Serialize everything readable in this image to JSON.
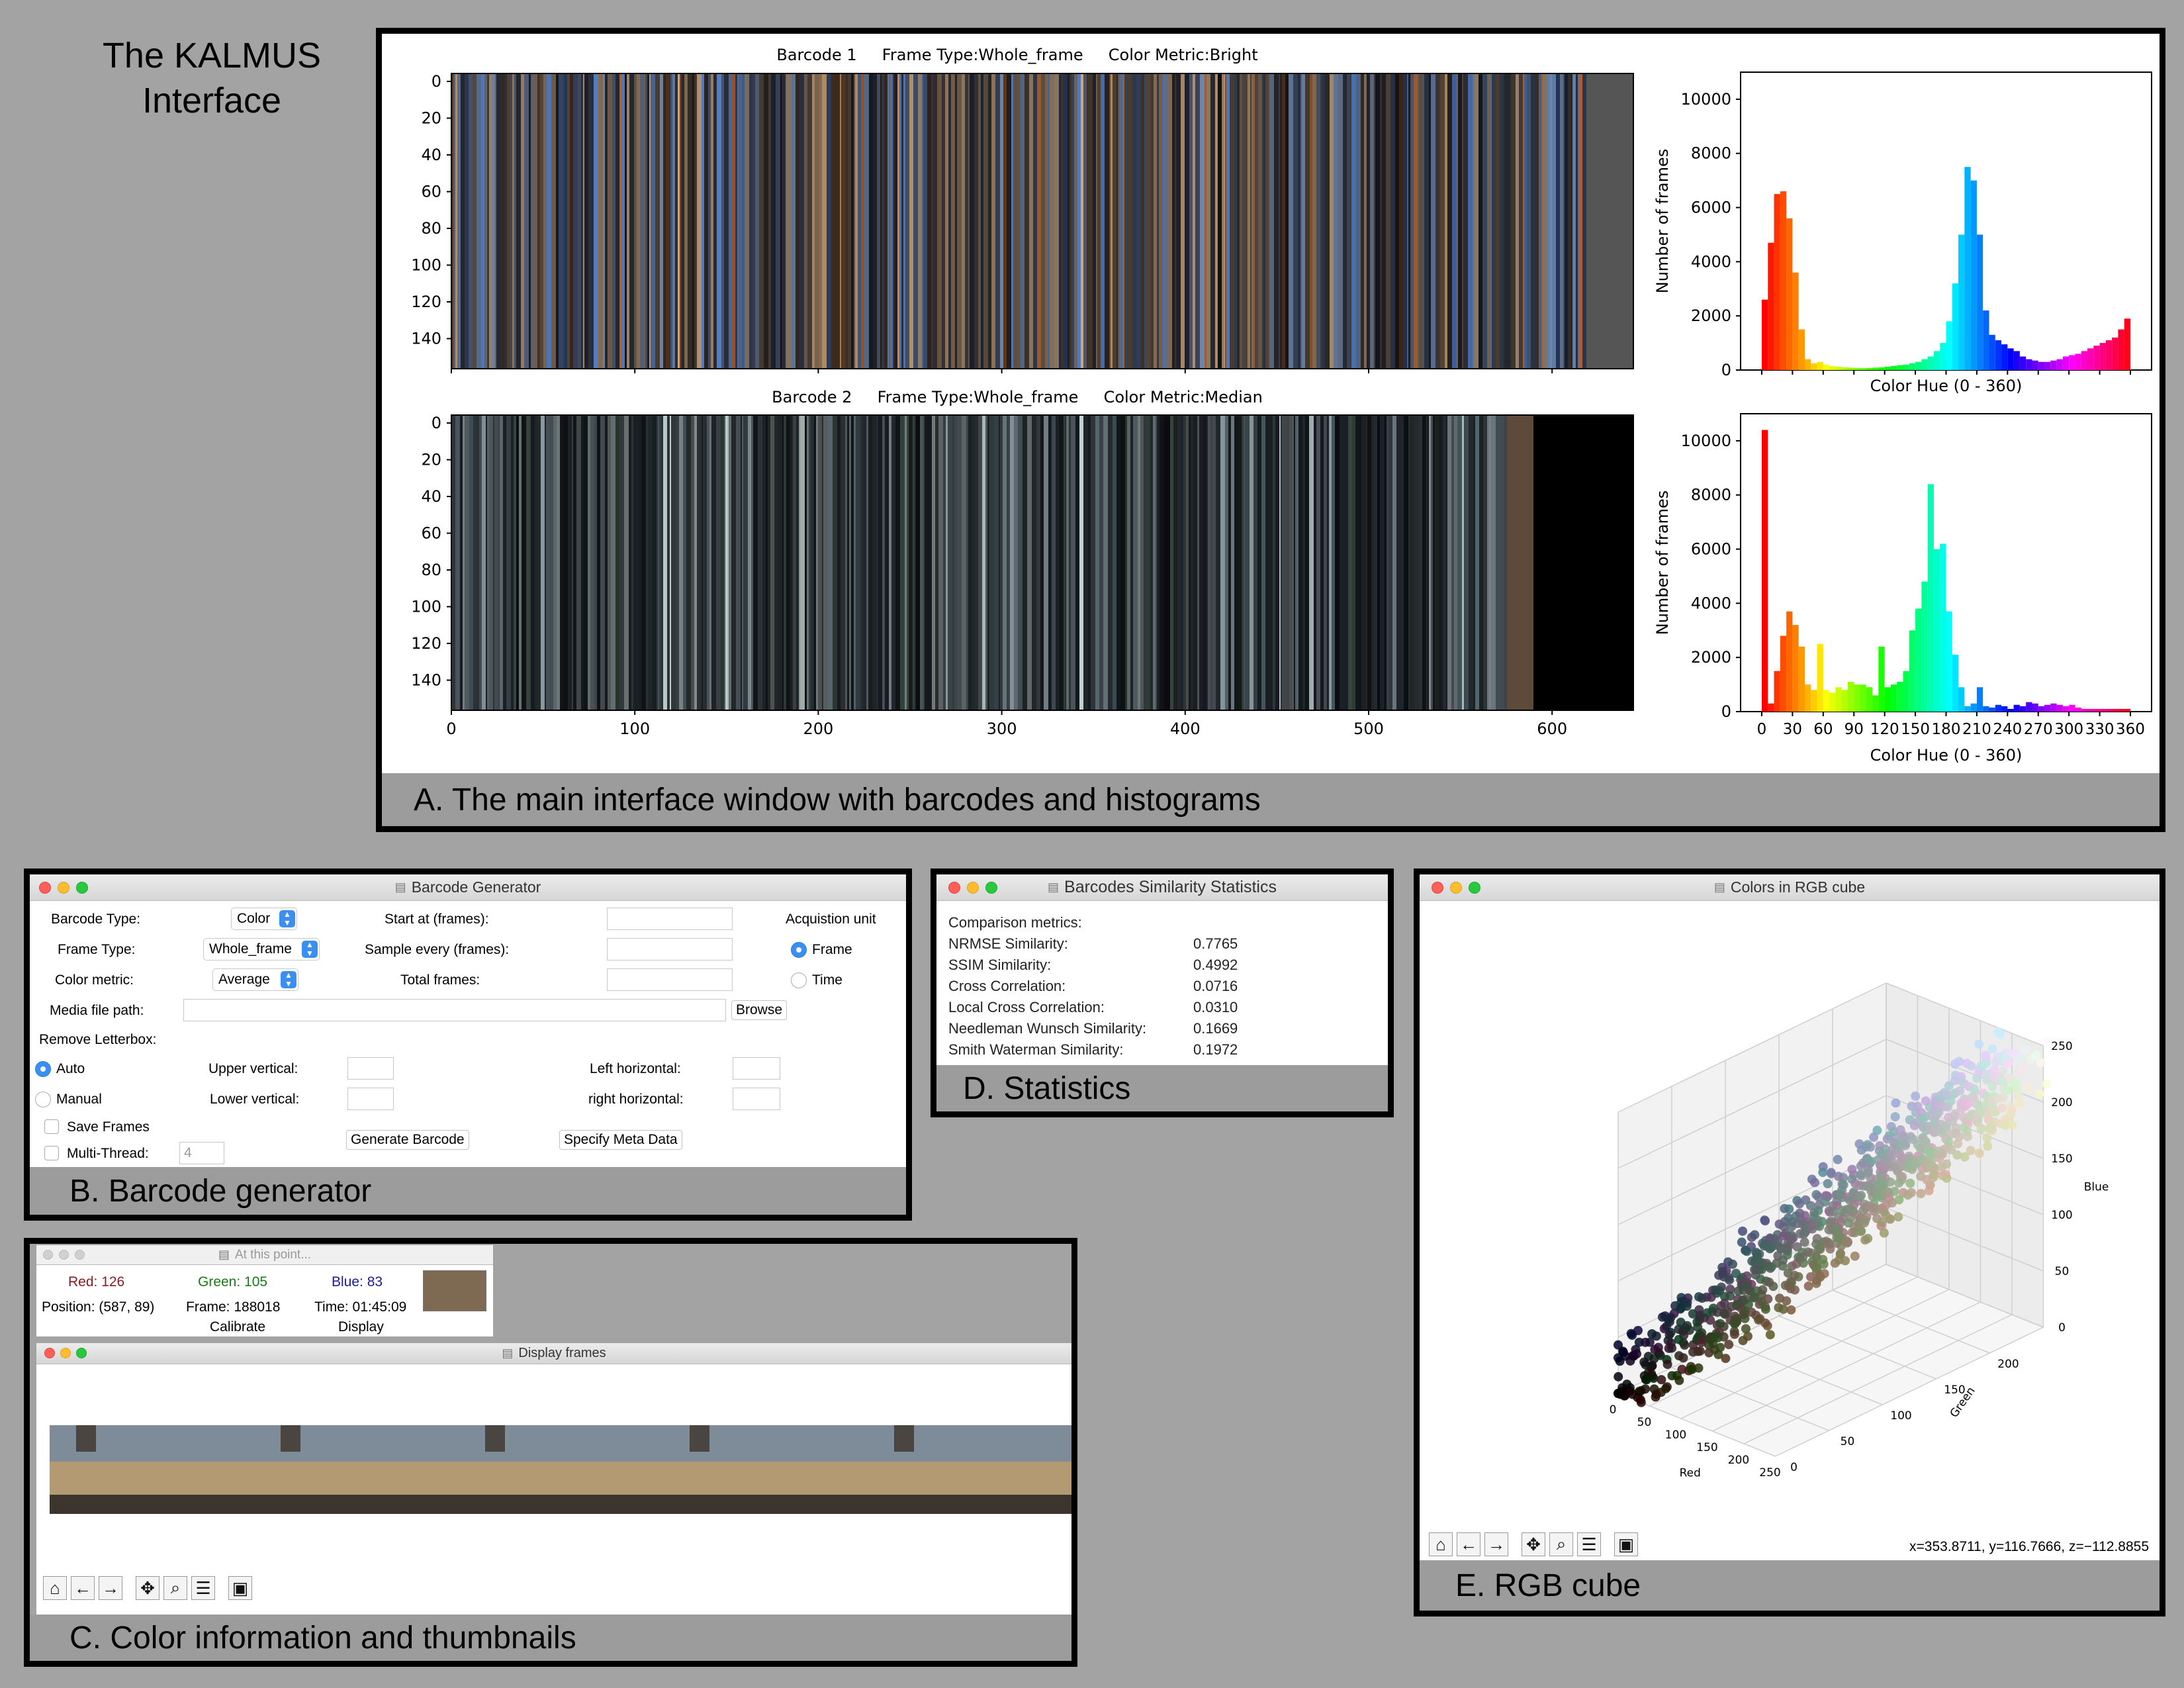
{
  "figure_title": {
    "line1": "The KALMUS",
    "line2": "Interface"
  },
  "panel_a": {
    "caption": "A.  The main interface window with barcodes and histograms",
    "barcode1": {
      "title": "Barcode 1     Frame Type:Whole_frame     Color Metric:Bright",
      "y_ticks": [
        "0",
        "20",
        "40",
        "60",
        "80",
        "100",
        "120",
        "140"
      ]
    },
    "barcode2": {
      "title": "Barcode 2     Frame Type:Whole_frame     Color Metric:Median",
      "y_ticks": [
        "0",
        "20",
        "40",
        "60",
        "80",
        "100",
        "120",
        "140"
      ],
      "x_ticks": [
        "0",
        "100",
        "200",
        "300",
        "400",
        "500",
        "600"
      ]
    },
    "hist1": {
      "ylabel": "Number of frames",
      "xlabel": "Color Hue (0 - 360)",
      "y_ticks": [
        "0",
        "2000",
        "4000",
        "6000",
        "8000",
        "10000"
      ]
    },
    "hist2": {
      "ylabel": "Number of frames",
      "xlabel": "Color Hue (0 - 360)",
      "y_ticks": [
        "0",
        "2000",
        "4000",
        "6000",
        "8000",
        "10000"
      ],
      "x_ticks": [
        "0",
        "30",
        "60",
        "90",
        "120",
        "150",
        "180",
        "210",
        "240",
        "270",
        "300",
        "330",
        "360"
      ]
    }
  },
  "chart_data": [
    {
      "type": "bar",
      "title": "",
      "xlabel": "Color Hue (0 - 360)",
      "ylabel": "Number of frames",
      "xlim": [
        0,
        360
      ],
      "ylim": [
        0,
        11000
      ],
      "bin_width": 6,
      "x": [
        0,
        6,
        12,
        18,
        24,
        30,
        36,
        42,
        48,
        54,
        60,
        66,
        72,
        78,
        84,
        90,
        96,
        102,
        108,
        114,
        120,
        126,
        132,
        138,
        144,
        150,
        156,
        162,
        168,
        174,
        180,
        186,
        192,
        198,
        204,
        210,
        216,
        222,
        228,
        234,
        240,
        246,
        252,
        258,
        264,
        270,
        276,
        282,
        288,
        294,
        300,
        306,
        312,
        318,
        324,
        330,
        336,
        342,
        348,
        354
      ],
      "values": [
        2600,
        4700,
        6500,
        6600,
        5600,
        3600,
        1500,
        400,
        250,
        300,
        200,
        150,
        120,
        100,
        90,
        80,
        70,
        80,
        90,
        100,
        120,
        150,
        180,
        200,
        250,
        300,
        400,
        500,
        700,
        1000,
        1800,
        3200,
        5000,
        7500,
        7000,
        5000,
        2200,
        1300,
        1100,
        950,
        800,
        700,
        500,
        400,
        350,
        300,
        300,
        350,
        400,
        500,
        550,
        600,
        700,
        800,
        900,
        1000,
        1100,
        1200,
        1500,
        1900
      ]
    },
    {
      "type": "bar",
      "title": "",
      "xlabel": "Color Hue (0 - 360)",
      "ylabel": "Number of frames",
      "xlim": [
        0,
        360
      ],
      "ylim": [
        0,
        11000
      ],
      "bin_width": 6,
      "x": [
        0,
        6,
        12,
        18,
        24,
        30,
        36,
        42,
        48,
        54,
        60,
        66,
        72,
        78,
        84,
        90,
        96,
        102,
        108,
        114,
        120,
        126,
        132,
        138,
        144,
        150,
        156,
        162,
        168,
        174,
        180,
        186,
        192,
        198,
        204,
        210,
        216,
        222,
        228,
        234,
        240,
        246,
        252,
        258,
        264,
        270,
        276,
        282,
        288,
        294,
        300,
        306,
        312,
        318,
        324,
        330,
        336,
        342,
        348,
        354
      ],
      "values": [
        10400,
        300,
        1500,
        2800,
        3700,
        3200,
        2400,
        1000,
        800,
        2500,
        800,
        700,
        900,
        800,
        1100,
        1000,
        1000,
        900,
        600,
        2400,
        900,
        1000,
        1100,
        1500,
        3000,
        3800,
        4800,
        8400,
        6000,
        6200,
        3700,
        2100,
        900,
        200,
        300,
        900,
        200,
        150,
        250,
        200,
        100,
        250,
        200,
        350,
        300,
        200,
        250,
        300,
        250,
        200,
        250,
        150,
        100,
        100,
        100,
        100,
        100,
        100,
        100,
        100
      ]
    }
  ],
  "panel_b": {
    "caption": "B.  Barcode generator",
    "window_title": "Barcode Generator",
    "labels": {
      "barcode_type": "Barcode Type:",
      "frame_type": "Frame Type:",
      "color_metric": "Color metric:",
      "start_at": "Start at (frames):",
      "sample_every": "Sample every (frames):",
      "total_frames": "Total frames:",
      "acquisition_unit": "Acquistion unit",
      "media_path": "Media file path:",
      "remove_letterbox": "Remove Letterbox:",
      "upper_vertical": "Upper vertical:",
      "lower_vertical": "Lower vertical:",
      "left_horizontal": "Left horizontal:",
      "right_horizontal": "right horizontal:"
    },
    "selects": {
      "barcode_type": "Color",
      "frame_type": "Whole_frame",
      "color_metric": "Average"
    },
    "radios": {
      "frame": "Frame",
      "time": "Time",
      "auto": "Auto",
      "manual": "Manual"
    },
    "checks": {
      "save_frames": "Save Frames",
      "multi_thread": "Multi-Thread:"
    },
    "thread_count": "4",
    "buttons": {
      "browse": "Browse",
      "generate": "Generate Barcode",
      "meta": "Specify Meta Data"
    }
  },
  "panel_c": {
    "caption": "C.  Color information and thumbnails",
    "info_title": "At this point...",
    "red": "Red: 126",
    "green": "Green: 105",
    "blue": "Blue: 83",
    "swatch_color": "#7e6953",
    "position": "Position: (587, 89)",
    "frame": "Frame: 188018",
    "time": "Time: 01:45:09",
    "calibrate": "Calibrate",
    "display": "Display",
    "frames_title": "Display frames"
  },
  "panel_d": {
    "caption": "D. Statistics",
    "window_title": "Barcodes Similarity Statistics",
    "heading": "Comparison metrics:",
    "metrics": [
      {
        "name": "NRMSE Similarity:",
        "value": "0.7765"
      },
      {
        "name": "SSIM Similarity:",
        "value": "0.4992"
      },
      {
        "name": "Cross Correlation:",
        "value": "0.0716"
      },
      {
        "name": "Local Cross Correlation:",
        "value": "0.0310"
      },
      {
        "name": "Needleman Wunsch Similarity:",
        "value": "0.1669"
      },
      {
        "name": "Smith Waterman Similarity:",
        "value": "0.1972"
      }
    ]
  },
  "panel_e": {
    "caption": "E.  RGB cube",
    "window_title": "Colors in RGB cube",
    "coords": "x=353.8711, y=116.7666, z=−112.8855",
    "axis_red": "Red",
    "axis_green": "Green",
    "axis_blue": "Blue",
    "red_ticks": [
      "0",
      "50",
      "100",
      "150",
      "200",
      "250"
    ],
    "green_ticks": [
      "0",
      "50",
      "100",
      "150",
      "200"
    ],
    "blue_ticks": [
      "0",
      "50",
      "100",
      "150",
      "200",
      "250"
    ]
  },
  "icons": [
    "home-icon",
    "back-arrow-icon",
    "forward-arrow-icon",
    "pan-icon",
    "zoom-icon",
    "configure-icon",
    "save-icon"
  ]
}
